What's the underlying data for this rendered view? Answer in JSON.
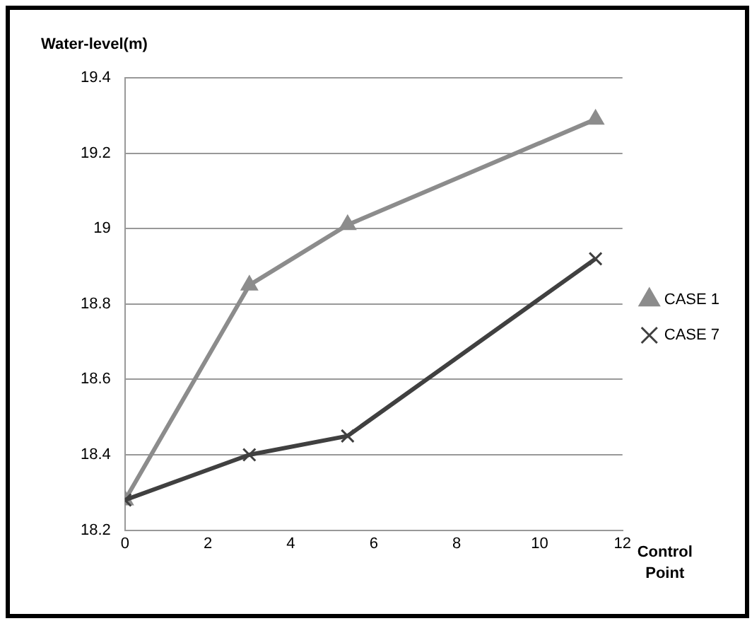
{
  "chart_data": {
    "type": "line",
    "xlabel": "Control Point",
    "ylabel": "Water-level(m)",
    "xlim": [
      0,
      12
    ],
    "xticks": [
      0,
      2,
      4,
      6,
      8,
      10,
      12
    ],
    "ylim": [
      18.2,
      19.4
    ],
    "yticks": [
      18.2,
      18.4,
      18.6,
      18.8,
      19,
      19.2,
      19.4
    ],
    "grid": "y",
    "legend": "right",
    "line_style": "solid",
    "series": [
      {
        "name": "CASE 1",
        "color": "#8c8c8c",
        "marker": "triangle",
        "x": [
          0,
          3,
          5.37,
          11.35
        ],
        "values": [
          18.28,
          18.85,
          19.01,
          19.29
        ]
      },
      {
        "name": "CASE 7",
        "color": "#404040",
        "marker": "cross",
        "x": [
          0,
          3,
          5.37,
          11.35
        ],
        "values": [
          18.28,
          18.4,
          18.45,
          18.92
        ]
      }
    ]
  }
}
